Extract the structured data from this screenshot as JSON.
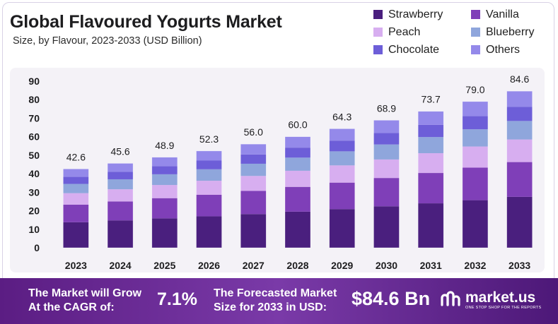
{
  "header": {
    "title": "Global Flavoured Yogurts Market",
    "subtitle": "Size, by Flavour, 2023-2033 (USD Billion)"
  },
  "legend": [
    {
      "label": "Strawberry",
      "color": "#4a1f7e"
    },
    {
      "label": "Vanilla",
      "color": "#7f3fb8"
    },
    {
      "label": "Peach",
      "color": "#d7aef0"
    },
    {
      "label": "Blueberry",
      "color": "#8fa6dc"
    },
    {
      "label": "Chocolate",
      "color": "#6d5ed8"
    },
    {
      "label": "Others",
      "color": "#9489ea"
    }
  ],
  "chart_data": {
    "type": "bar",
    "stacked": true,
    "title": "Global Flavoured Yogurts Market",
    "subtitle": "Size, by Flavour, 2023-2033 (USD Billion)",
    "categories": [
      "2023",
      "2024",
      "2025",
      "2026",
      "2027",
      "2028",
      "2029",
      "2030",
      "2031",
      "2032",
      "2033"
    ],
    "totals": [
      42.6,
      45.6,
      48.9,
      52.3,
      56.0,
      60.0,
      64.3,
      68.9,
      73.7,
      79.0,
      84.6
    ],
    "total_labels": [
      "42.6",
      "45.6",
      "48.9",
      "52.3",
      "56.0",
      "60.0",
      "64.3",
      "68.9",
      "73.7",
      "79.0",
      "84.6"
    ],
    "series": [
      {
        "name": "Strawberry",
        "color": "#4a1f7e",
        "values": [
          13.8,
          14.8,
          15.9,
          17.0,
          18.2,
          19.5,
          20.9,
          22.4,
          24.0,
          25.7,
          27.5
        ]
      },
      {
        "name": "Vanilla",
        "color": "#7f3fb8",
        "values": [
          9.5,
          10.2,
          10.9,
          11.6,
          12.5,
          13.4,
          14.3,
          15.3,
          16.4,
          17.6,
          18.8
        ]
      },
      {
        "name": "Peach",
        "color": "#d7aef0",
        "values": [
          6.2,
          6.6,
          7.1,
          7.6,
          8.1,
          8.7,
          9.3,
          10.0,
          10.7,
          11.4,
          12.2
        ]
      },
      {
        "name": "Blueberry",
        "color": "#8fa6dc",
        "values": [
          5.0,
          5.4,
          5.8,
          6.2,
          6.6,
          7.1,
          7.6,
          8.1,
          8.7,
          9.3,
          10.0
        ]
      },
      {
        "name": "Chocolate",
        "color": "#6d5ed8",
        "values": [
          3.8,
          4.1,
          4.4,
          4.7,
          5.0,
          5.4,
          5.8,
          6.2,
          6.6,
          7.1,
          7.6
        ]
      },
      {
        "name": "Others",
        "color": "#9489ea",
        "values": [
          4.3,
          4.5,
          4.8,
          5.2,
          5.6,
          5.9,
          6.4,
          6.9,
          7.3,
          7.9,
          8.5
        ]
      }
    ],
    "ylim": [
      0,
      90
    ],
    "yticks": [
      0,
      10,
      20,
      30,
      40,
      50,
      60,
      70,
      80,
      90
    ],
    "xlabel": "",
    "ylabel": "",
    "grid": false,
    "legend_position": "top-right"
  },
  "footer": {
    "cagr_label": "The Market will Grow\nAt the CAGR of:",
    "cagr_value": "7.1%",
    "size_label": "The Forecasted Market\nSize for 2033 in USD:",
    "size_value": "$84.6 Bn",
    "brand_name": "market.us",
    "brand_tagline": "ONE STOP SHOP FOR THE REPORTS"
  }
}
